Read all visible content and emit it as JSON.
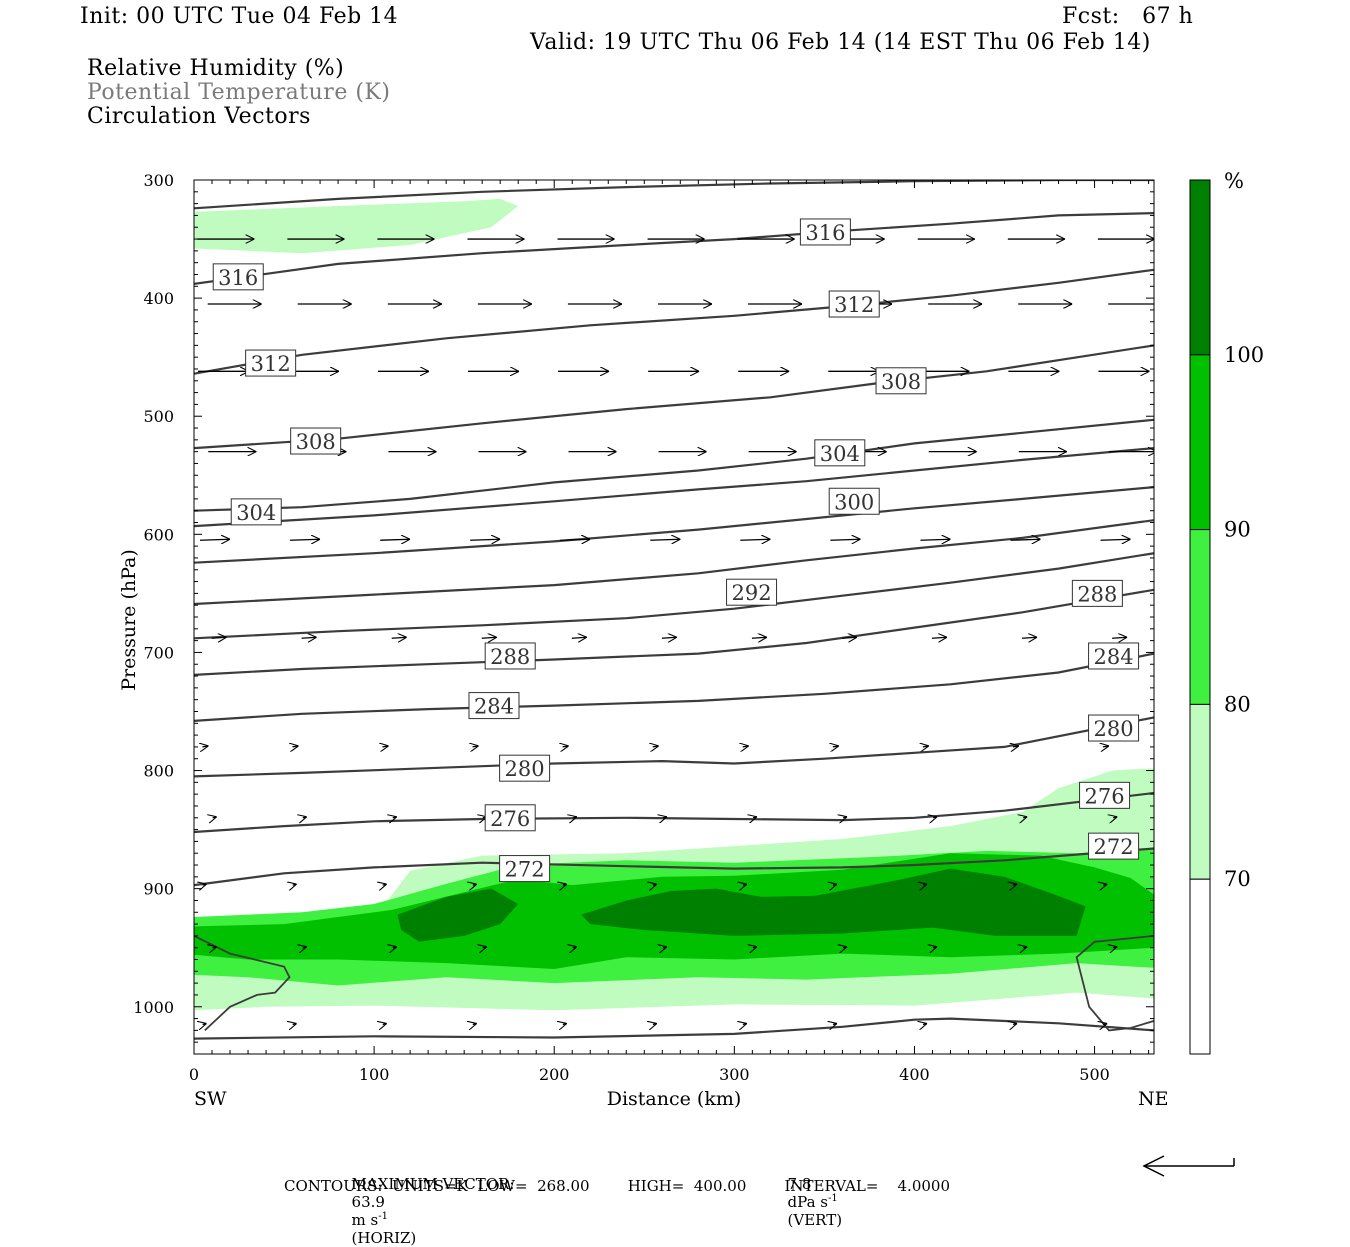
{
  "header": {
    "init": "Init: 00 UTC Tue 04 Feb 14",
    "fcst": "Fcst:   67 h",
    "valid": "Valid: 19 UTC Thu 06 Feb 14 (14 EST Thu 06 Feb 14)",
    "fields": [
      "Relative Humidity (%)",
      "Potential Temperature (K)",
      "Circulation Vectors"
    ]
  },
  "footer": {
    "max_vector_label": "MAXIMUM VECTOR:",
    "horiz_value": "63.9",
    "horiz_unit": "m s",
    "horiz_exp": "-1",
    "horiz_tag": "(HORIZ)",
    "vert_value": "7.8",
    "vert_unit": "dPa s",
    "vert_exp": "-1",
    "vert_tag": "(VERT)",
    "contours_text": "CONTOURS:  UNITS=K  LOW=  268.00        HIGH=  400.00        INTERVAL=    4.0000"
  },
  "colors": {
    "rh_70_80": "#c0fcc0",
    "rh_80_90": "#40f040",
    "rh_90_100": "#00c000",
    "rh_100_plus": "#008000",
    "theta_line": "#3c3c3c"
  },
  "chart_data": {
    "type": "cross-section",
    "xlabel": "Distance (km)",
    "ylabel": "Pressure (hPa)",
    "xlim": [
      0,
      533
    ],
    "ylim": [
      1040,
      300
    ],
    "x_ticks": [
      0,
      100,
      200,
      300,
      400,
      500
    ],
    "y_ticks": [
      300,
      400,
      500,
      600,
      700,
      800,
      900,
      1000
    ],
    "x_end_labels": {
      "left": "SW",
      "right": "NE"
    },
    "colorbar": {
      "unit": "%",
      "levels": [
        70,
        80,
        90,
        100
      ],
      "bins": [
        {
          "range": "<70",
          "color": "#ffffff"
        },
        {
          "range": "70-80",
          "color": "#c0fcc0"
        },
        {
          "range": "80-90",
          "color": "#40f040"
        },
        {
          "range": "90-100",
          "color": "#00c000"
        },
        {
          "range": ">100",
          "color": "#008000"
        }
      ]
    },
    "theta_contours": [
      {
        "label": "272",
        "points": [
          [
            0,
            897
          ],
          [
            50,
            887
          ],
          [
            100,
            882
          ],
          [
            160,
            878
          ],
          [
            240,
            881
          ],
          [
            300,
            883
          ],
          [
            360,
            882
          ],
          [
            400,
            880
          ],
          [
            450,
            876
          ],
          [
            533,
            866
          ]
        ]
      },
      {
        "label": "276",
        "points": [
          [
            0,
            852
          ],
          [
            50,
            847
          ],
          [
            100,
            843
          ],
          [
            160,
            841
          ],
          [
            240,
            840
          ],
          [
            300,
            841
          ],
          [
            360,
            842
          ],
          [
            400,
            840
          ],
          [
            450,
            834
          ],
          [
            533,
            819
          ]
        ]
      },
      {
        "label": "280",
        "points": [
          [
            0,
            805
          ],
          [
            60,
            802
          ],
          [
            130,
            798
          ],
          [
            200,
            794
          ],
          [
            260,
            792
          ],
          [
            300,
            794
          ],
          [
            350,
            790
          ],
          [
            400,
            785
          ],
          [
            450,
            780
          ],
          [
            533,
            755
          ]
        ]
      },
      {
        "label": "284",
        "points": [
          [
            0,
            758
          ],
          [
            60,
            752
          ],
          [
            130,
            748
          ],
          [
            200,
            745
          ],
          [
            280,
            741
          ],
          [
            350,
            735
          ],
          [
            420,
            727
          ],
          [
            480,
            717
          ],
          [
            533,
            701
          ]
        ]
      },
      {
        "label": "288",
        "points": [
          [
            0,
            719
          ],
          [
            60,
            714
          ],
          [
            130,
            710
          ],
          [
            200,
            706
          ],
          [
            280,
            701
          ],
          [
            340,
            692
          ],
          [
            400,
            679
          ],
          [
            460,
            666
          ],
          [
            533,
            647
          ]
        ]
      },
      {
        "label": "",
        "points": [
          [
            0,
            688
          ],
          [
            80,
            682
          ],
          [
            160,
            677
          ],
          [
            240,
            671
          ],
          [
            300,
            663
          ],
          [
            360,
            652
          ],
          [
            420,
            641
          ],
          [
            480,
            629
          ],
          [
            533,
            616
          ]
        ]
      },
      {
        "label": "292",
        "points": [
          [
            0,
            659
          ],
          [
            100,
            651
          ],
          [
            200,
            643
          ],
          [
            280,
            633
          ],
          [
            340,
            622
          ],
          [
            400,
            612
          ],
          [
            460,
            603
          ],
          [
            533,
            588
          ]
        ]
      },
      {
        "label": "",
        "points": [
          [
            0,
            624
          ],
          [
            100,
            616
          ],
          [
            200,
            606
          ],
          [
            280,
            596
          ],
          [
            340,
            587
          ],
          [
            400,
            578
          ],
          [
            460,
            570
          ],
          [
            533,
            560
          ]
        ]
      },
      {
        "label": "300",
        "points": [
          [
            0,
            593
          ],
          [
            100,
            584
          ],
          [
            200,
            572
          ],
          [
            280,
            562
          ],
          [
            340,
            555
          ],
          [
            400,
            546
          ],
          [
            460,
            537
          ],
          [
            533,
            527
          ]
        ]
      },
      {
        "label": "304",
        "points": [
          [
            0,
            580
          ],
          [
            60,
            577
          ],
          [
            120,
            570
          ],
          [
            200,
            556
          ],
          [
            280,
            546
          ],
          [
            340,
            536
          ],
          [
            400,
            523
          ],
          [
            460,
            514
          ],
          [
            533,
            503
          ]
        ]
      },
      {
        "label": "308",
        "points": [
          [
            0,
            527
          ],
          [
            80,
            519
          ],
          [
            160,
            506
          ],
          [
            240,
            494
          ],
          [
            320,
            484
          ],
          [
            380,
            472
          ],
          [
            440,
            462
          ],
          [
            533,
            440
          ]
        ]
      },
      {
        "label": "312",
        "points": [
          [
            0,
            464
          ],
          [
            60,
            448
          ],
          [
            140,
            434
          ],
          [
            220,
            423
          ],
          [
            300,
            415
          ],
          [
            360,
            407
          ],
          [
            420,
            398
          ],
          [
            480,
            387
          ],
          [
            533,
            376
          ]
        ]
      },
      {
        "label": "316",
        "points": [
          [
            0,
            388
          ],
          [
            80,
            371
          ],
          [
            160,
            362
          ],
          [
            240,
            355
          ],
          [
            300,
            350
          ],
          [
            360,
            343
          ],
          [
            420,
            337
          ],
          [
            480,
            330
          ],
          [
            533,
            328
          ]
        ]
      },
      {
        "label": "",
        "points": [
          [
            0,
            324
          ],
          [
            80,
            316
          ],
          [
            160,
            310
          ],
          [
            240,
            306
          ],
          [
            320,
            303
          ],
          [
            400,
            301
          ],
          [
            480,
            300
          ],
          [
            533,
            300
          ]
        ]
      },
      {
        "label": "",
        "points": [
          [
            0,
            1027
          ],
          [
            100,
            1025
          ],
          [
            200,
            1026
          ],
          [
            300,
            1023
          ],
          [
            360,
            1017
          ],
          [
            400,
            1011
          ],
          [
            420,
            1010
          ],
          [
            480,
            1014
          ],
          [
            533,
            1020
          ]
        ]
      }
    ],
    "theta_labels": [
      {
        "text": "316",
        "x": 24,
        "p": 382
      },
      {
        "text": "316",
        "x": 350,
        "p": 344
      },
      {
        "text": "312",
        "x": 42,
        "p": 455
      },
      {
        "text": "312",
        "x": 366,
        "p": 405
      },
      {
        "text": "308",
        "x": 67,
        "p": 521
      },
      {
        "text": "308",
        "x": 392,
        "p": 470
      },
      {
        "text": "304",
        "x": 34,
        "p": 581
      },
      {
        "text": "304",
        "x": 358,
        "p": 531
      },
      {
        "text": "300",
        "x": 366,
        "p": 572
      },
      {
        "text": "292",
        "x": 309,
        "p": 649
      },
      {
        "text": "288",
        "x": 175,
        "p": 703
      },
      {
        "text": "288",
        "x": 501,
        "p": 650
      },
      {
        "text": "284",
        "x": 166,
        "p": 745
      },
      {
        "text": "284",
        "x": 510,
        "p": 703
      },
      {
        "text": "280",
        "x": 183,
        "p": 798
      },
      {
        "text": "280",
        "x": 510,
        "p": 764
      },
      {
        "text": "276",
        "x": 175,
        "p": 840
      },
      {
        "text": "276",
        "x": 505,
        "p": 821
      },
      {
        "text": "272",
        "x": 183,
        "p": 883
      },
      {
        "text": "272",
        "x": 510,
        "p": 864
      }
    ],
    "vector_rows": [
      {
        "p": 350,
        "len": 0.95
      },
      {
        "p": 405,
        "len": 0.9
      },
      {
        "p": 462,
        "len": 0.85
      },
      {
        "p": 530,
        "len": 0.8
      },
      {
        "p": 605,
        "len": 0.5
      },
      {
        "p": 688,
        "len": 0.25
      },
      {
        "p": 780,
        "len": 0.1
      },
      {
        "p": 840,
        "len": 0.05
      },
      {
        "p": 897,
        "len": 0.04
      },
      {
        "p": 950,
        "len": 0.03
      },
      {
        "p": 1015,
        "len": 0.03
      }
    ]
  }
}
